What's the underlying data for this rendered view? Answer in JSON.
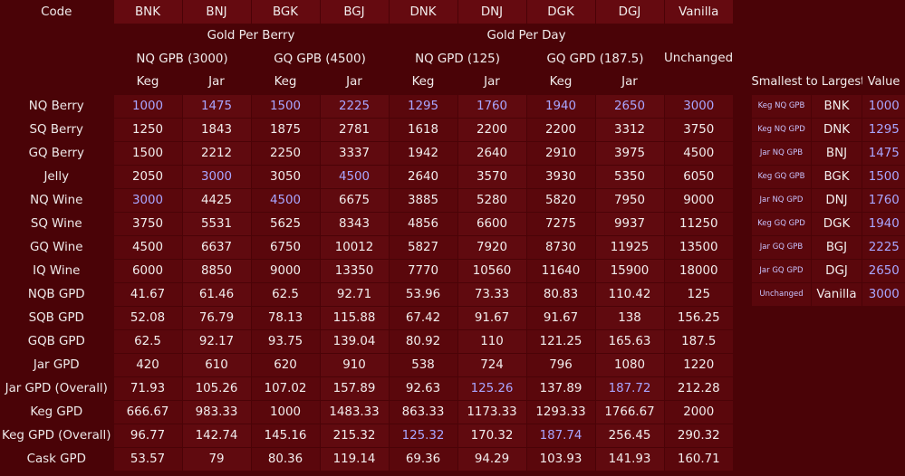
{
  "header": {
    "code_label": "Code",
    "codes": [
      "BNK",
      "BNJ",
      "BGK",
      "BGJ",
      "DNK",
      "DNJ",
      "DGK",
      "DGJ",
      "Vanilla"
    ],
    "group1": "Gold Per Berry",
    "group2": "Gold Per Day",
    "sub1": "NQ GPB (3000)",
    "sub2": "GQ GPB (4500)",
    "sub3": "NQ GPD (125)",
    "sub4": "GQ GPD (187.5)",
    "unchanged": "Unchanged",
    "kegjar": [
      "Keg",
      "Jar",
      "Keg",
      "Jar",
      "Keg",
      "Jar",
      "Keg",
      "Jar"
    ]
  },
  "rows": [
    {
      "label": "NQ Berry",
      "values": [
        "1000",
        "1475",
        "1500",
        "2225",
        "1295",
        "1760",
        "1940",
        "2650",
        "3000"
      ],
      "hl": [
        1,
        1,
        1,
        1,
        1,
        1,
        1,
        1,
        1
      ]
    },
    {
      "label": "SQ Berry",
      "values": [
        "1250",
        "1843",
        "1875",
        "2781",
        "1618",
        "2200",
        "2200",
        "3312",
        "3750"
      ],
      "hl": [
        0,
        0,
        0,
        0,
        0,
        0,
        0,
        0,
        0
      ]
    },
    {
      "label": "GQ Berry",
      "values": [
        "1500",
        "2212",
        "2250",
        "3337",
        "1942",
        "2640",
        "2910",
        "3975",
        "4500"
      ],
      "hl": [
        0,
        0,
        0,
        0,
        0,
        0,
        0,
        0,
        0
      ]
    },
    {
      "label": "Jelly",
      "values": [
        "2050",
        "3000",
        "3050",
        "4500",
        "2640",
        "3570",
        "3930",
        "5350",
        "6050"
      ],
      "hl": [
        0,
        1,
        0,
        1,
        0,
        0,
        0,
        0,
        0
      ]
    },
    {
      "label": "NQ Wine",
      "values": [
        "3000",
        "4425",
        "4500",
        "6675",
        "3885",
        "5280",
        "5820",
        "7950",
        "9000"
      ],
      "hl": [
        1,
        0,
        1,
        0,
        0,
        0,
        0,
        0,
        0
      ]
    },
    {
      "label": "SQ Wine",
      "values": [
        "3750",
        "5531",
        "5625",
        "8343",
        "4856",
        "6600",
        "7275",
        "9937",
        "11250"
      ],
      "hl": [
        0,
        0,
        0,
        0,
        0,
        0,
        0,
        0,
        0
      ]
    },
    {
      "label": "GQ Wine",
      "values": [
        "4500",
        "6637",
        "6750",
        "10012",
        "5827",
        "7920",
        "8730",
        "11925",
        "13500"
      ],
      "hl": [
        0,
        0,
        0,
        0,
        0,
        0,
        0,
        0,
        0
      ]
    },
    {
      "label": "IQ Wine",
      "values": [
        "6000",
        "8850",
        "9000",
        "13350",
        "7770",
        "10560",
        "11640",
        "15900",
        "18000"
      ],
      "hl": [
        0,
        0,
        0,
        0,
        0,
        0,
        0,
        0,
        0
      ]
    },
    {
      "label": "NQB GPD",
      "values": [
        "41.67",
        "61.46",
        "62.5",
        "92.71",
        "53.96",
        "73.33",
        "80.83",
        "110.42",
        "125"
      ],
      "hl": [
        0,
        0,
        0,
        0,
        0,
        0,
        0,
        0,
        0
      ]
    },
    {
      "label": "SQB GPD",
      "values": [
        "52.08",
        "76.79",
        "78.13",
        "115.88",
        "67.42",
        "91.67",
        "91.67",
        "138",
        "156.25"
      ],
      "hl": [
        0,
        0,
        0,
        0,
        0,
        0,
        0,
        0,
        0
      ]
    },
    {
      "label": "GQB GPD",
      "values": [
        "62.5",
        "92.17",
        "93.75",
        "139.04",
        "80.92",
        "110",
        "121.25",
        "165.63",
        "187.5"
      ],
      "hl": [
        0,
        0,
        0,
        0,
        0,
        0,
        0,
        0,
        0
      ]
    },
    {
      "label": "Jar GPD",
      "values": [
        "420",
        "610",
        "620",
        "910",
        "538",
        "724",
        "796",
        "1080",
        "1220"
      ],
      "hl": [
        0,
        0,
        0,
        0,
        0,
        0,
        0,
        0,
        0
      ]
    },
    {
      "label": "Jar GPD (Overall)",
      "values": [
        "71.93",
        "105.26",
        "107.02",
        "157.89",
        "92.63",
        "125.26",
        "137.89",
        "187.72",
        "212.28"
      ],
      "hl": [
        0,
        0,
        0,
        0,
        0,
        1,
        0,
        1,
        0
      ]
    },
    {
      "label": "Keg GPD",
      "values": [
        "666.67",
        "983.33",
        "1000",
        "1483.33",
        "863.33",
        "1173.33",
        "1293.33",
        "1766.67",
        "2000"
      ],
      "hl": [
        0,
        0,
        0,
        0,
        0,
        0,
        0,
        0,
        0
      ]
    },
    {
      "label": "Keg GPD (Overall)",
      "values": [
        "96.77",
        "142.74",
        "145.16",
        "215.32",
        "125.32",
        "170.32",
        "187.74",
        "256.45",
        "290.32"
      ],
      "hl": [
        0,
        0,
        0,
        0,
        1,
        0,
        1,
        0,
        0
      ]
    },
    {
      "label": "Cask GPD",
      "values": [
        "53.57",
        "79",
        "80.36",
        "119.14",
        "69.36",
        "94.29",
        "103.93",
        "141.93",
        "160.71"
      ],
      "hl": [
        0,
        0,
        0,
        0,
        0,
        0,
        0,
        0,
        0
      ]
    }
  ],
  "side": {
    "title": "Smallest to Largest",
    "value_label": "Value",
    "rows": [
      {
        "desc": "Keg NQ GPB",
        "code": "BNK",
        "value": "1000"
      },
      {
        "desc": "Keg NQ GPD",
        "code": "DNK",
        "value": "1295"
      },
      {
        "desc": "Jar NQ GPB",
        "code": "BNJ",
        "value": "1475"
      },
      {
        "desc": "Keg GQ GPB",
        "code": "BGK",
        "value": "1500"
      },
      {
        "desc": "Jar NQ GPD",
        "code": "DNJ",
        "value": "1760"
      },
      {
        "desc": "Keg GQ GPD",
        "code": "DGK",
        "value": "1940"
      },
      {
        "desc": "Jar GQ GPB",
        "code": "BGJ",
        "value": "2225"
      },
      {
        "desc": "Jar GQ GPD",
        "code": "DGJ",
        "value": "2650"
      },
      {
        "desc": "Unchanged",
        "code": "Vanilla",
        "value": "3000"
      }
    ]
  }
}
